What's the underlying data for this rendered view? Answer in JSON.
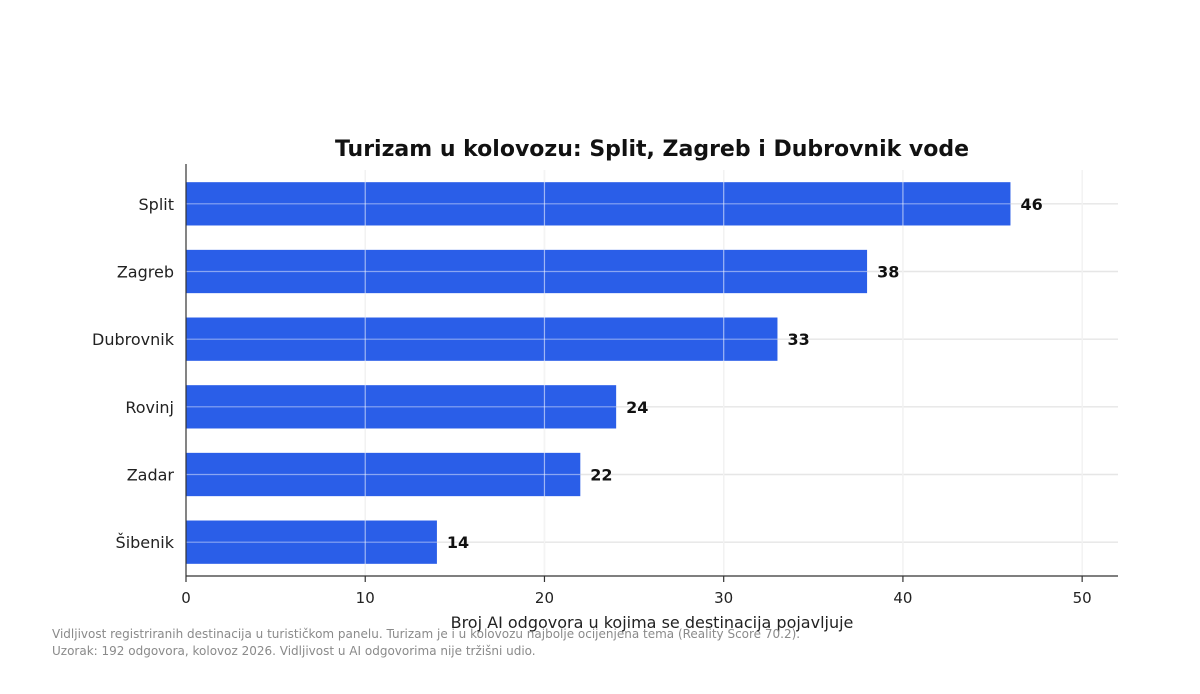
{
  "chart_data": {
    "type": "bar",
    "orientation": "horizontal",
    "title": "Turizam u kolovozu: Split, Zagreb i Dubrovnik vode",
    "xlabel": "Broj AI odgovora u kojima se destinacija pojavljuje",
    "ylabel": "",
    "categories": [
      "Split",
      "Zagreb",
      "Dubrovnik",
      "Rovinj",
      "Zadar",
      "Šibenik"
    ],
    "values": [
      46,
      38,
      33,
      24,
      22,
      14
    ],
    "xlim": [
      0,
      52
    ],
    "xticks": [
      0,
      10,
      20,
      30,
      40,
      50
    ],
    "grid": true,
    "bar_color": "#2a5ee8",
    "data_labels": true
  },
  "notes": {
    "line1": "Vidljivost registriranih destinacija u turističkom panelu. Turizam je i u kolovozu najbolje ocijenjena tema (Reality Score 70.2).",
    "line2": "Uzorak: 192 odgovora, kolovoz 2026. Vidljivost u AI odgovorima nije tržišni udio."
  }
}
